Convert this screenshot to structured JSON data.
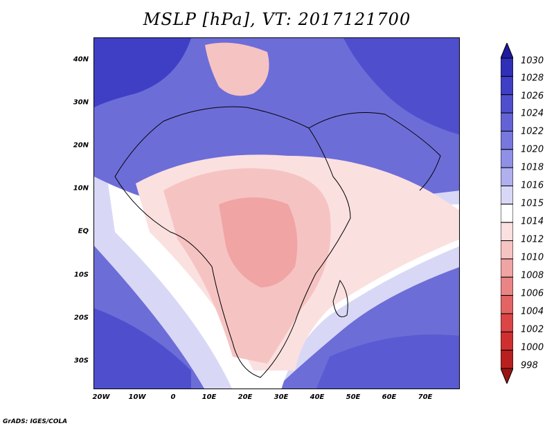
{
  "title": "MSLP [hPa], VT: 2017121700",
  "footer": "GrADS: IGES/COLA",
  "map": {
    "lat_labels": [
      "40N",
      "30N",
      "20N",
      "10N",
      "EQ",
      "10S",
      "20S",
      "30S"
    ],
    "lon_labels": [
      "20W",
      "10W",
      "0",
      "10E",
      "20E",
      "30E",
      "40E",
      "50E",
      "60E",
      "70E"
    ],
    "lon_range": [
      -22,
      80
    ],
    "lat_range": [
      -37,
      45
    ]
  },
  "colorbar": {
    "levels": [
      "1030",
      "1028",
      "1026",
      "1024",
      "1022",
      "1020",
      "1018",
      "1016",
      "1015",
      "1014",
      "1012",
      "1010",
      "1008",
      "1006",
      "1004",
      "1002",
      "1000",
      "998"
    ],
    "colors": [
      "#1f1a9e",
      "#2f2fb8",
      "#3f3fc6",
      "#4f4fce",
      "#6363d6",
      "#7777dd",
      "#9090e6",
      "#b0b0ee",
      "#d8d8f6",
      "#ffffff",
      "#fbe0e0",
      "#f6c3c3",
      "#f0a4a4",
      "#e98585",
      "#e36464",
      "#db4545",
      "#cf2f2f",
      "#b82020",
      "#9a1515"
    ]
  }
}
